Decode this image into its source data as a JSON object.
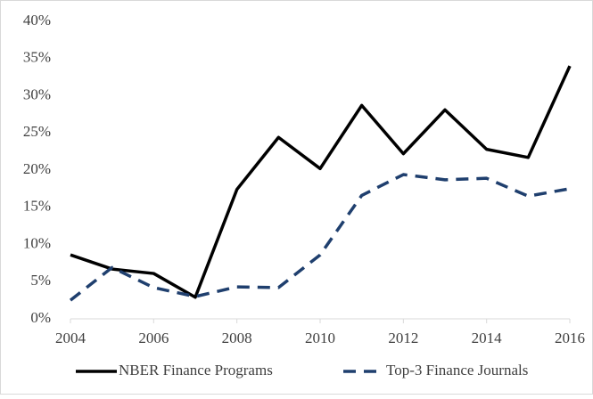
{
  "chart_data": {
    "type": "line",
    "x": [
      2004,
      2005,
      2006,
      2007,
      2008,
      2009,
      2010,
      2011,
      2012,
      2013,
      2014,
      2015,
      2016
    ],
    "series": [
      {
        "name": "NBER Finance Programs",
        "color": "#000000",
        "line_style": "solid",
        "values": [
          8.6,
          6.7,
          6.1,
          2.9,
          17.4,
          24.4,
          20.2,
          28.7,
          22.2,
          28.1,
          22.8,
          21.7,
          34.0
        ]
      },
      {
        "name": "Top-3 Finance Journals",
        "color": "#1f3f6e",
        "line_style": "dashed",
        "values": [
          2.5,
          6.9,
          4.2,
          3.0,
          4.3,
          4.2,
          8.6,
          16.6,
          19.4,
          18.7,
          18.9,
          16.5,
          17.5
        ]
      }
    ],
    "xlim": [
      2004,
      2016
    ],
    "xticks": [
      2004,
      2006,
      2008,
      2010,
      2012,
      2014,
      2016
    ],
    "ylim": [
      0,
      40
    ],
    "yticks": [
      {
        "value": 0,
        "label": "0%"
      },
      {
        "value": 5,
        "label": "5%"
      },
      {
        "value": 10,
        "label": "10%"
      },
      {
        "value": 15,
        "label": "15%"
      },
      {
        "value": 20,
        "label": "20%"
      },
      {
        "value": 25,
        "label": "25%"
      },
      {
        "value": 30,
        "label": "30%"
      },
      {
        "value": 35,
        "label": "35%"
      },
      {
        "value": 40,
        "label": "40%"
      }
    ],
    "grid": false,
    "legend": "bottom"
  }
}
